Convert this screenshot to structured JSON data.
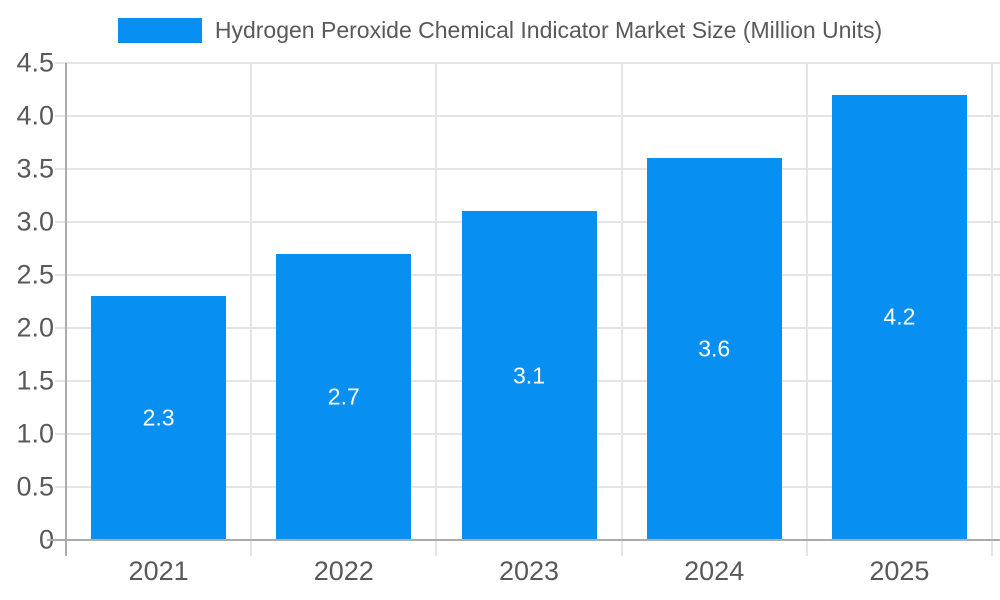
{
  "chart_data": {
    "type": "bar",
    "title": "Hydrogen Peroxide Chemical Indicator Market Size (Million Units)",
    "legend": [
      {
        "label": "Hydrogen Peroxide Chemical Indicator Market Size (Million Units)",
        "swatch_color": "#0790f2"
      }
    ],
    "legend_position": "top",
    "categories": [
      "2021",
      "2022",
      "2023",
      "2024",
      "2025"
    ],
    "series": [
      {
        "name": "Hydrogen Peroxide Chemical Indicator Market Size (Million Units)",
        "values": [
          2.3,
          2.7,
          3.1,
          3.6,
          4.2
        ],
        "data_labels": [
          "2.3",
          "2.7",
          "3.1",
          "3.6",
          "4.2"
        ]
      }
    ],
    "xlabel": "",
    "ylabel": "",
    "ylim": [
      0,
      4.5
    ],
    "ytick_step": 0.5,
    "ytick_labels": [
      "0",
      "0.5",
      "1.0",
      "1.5",
      "2.0",
      "2.5",
      "3.0",
      "3.5",
      "4.0",
      "4.5"
    ],
    "grid": true,
    "grid_horizontal": true,
    "grid_vertical": true
  },
  "colors": {
    "bar": "#0790f2",
    "bar_label_text": "#ffffff",
    "axis_line": "#ababab",
    "gridline": "#e5e5e5",
    "tick_text": "#595959",
    "title_text": "#595959",
    "background": "#ffffff"
  }
}
